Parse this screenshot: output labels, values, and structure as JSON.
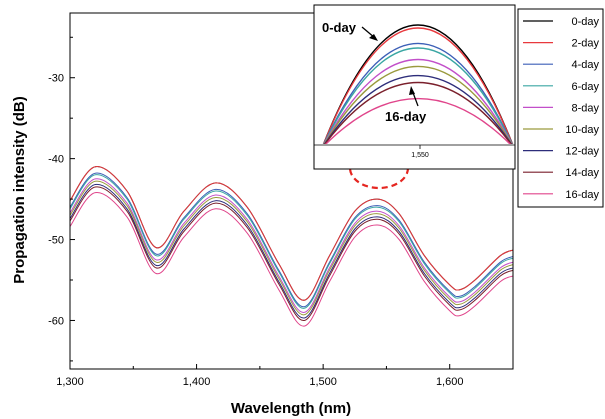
{
  "chart_data": {
    "type": "line",
    "title": "",
    "xlabel": "Wavelength (nm)",
    "ylabel": "Propagation intensity (dB)",
    "xlim": [
      1300,
      1650
    ],
    "ylim": [
      -66,
      -22
    ],
    "x_ticks": [
      1300,
      1400,
      1500,
      1600
    ],
    "x_tick_labels": [
      "1,300",
      "1,400",
      "1,500",
      "1,600"
    ],
    "y_ticks": [
      -60,
      -50,
      -40,
      -30
    ],
    "y_tick_labels": [
      "-60",
      "-50",
      "-40",
      "-30"
    ],
    "grid": false,
    "legend_position": "outside-right",
    "base_curve": {
      "x": [
        1300,
        1320,
        1345,
        1368,
        1390,
        1415,
        1440,
        1465,
        1485,
        1505,
        1525,
        1543,
        1560,
        1580,
        1600,
        1608,
        1620,
        1640,
        1650
      ],
      "y": [
        -45.2,
        -41.0,
        -44.0,
        -51.0,
        -46.5,
        -43.0,
        -46.0,
        -53.0,
        -57.5,
        -52.0,
        -46.5,
        -45.0,
        -46.8,
        -52.0,
        -55.6,
        -56.2,
        -55.0,
        -52.0,
        -51.3
      ]
    },
    "series": [
      {
        "name": "0-day",
        "color": "#000000",
        "offset": 0.0
      },
      {
        "name": "2-day",
        "color": "#e8383d",
        "offset": 0.0
      },
      {
        "name": "4-day",
        "color": "#3c5fb7",
        "offset": -0.8
      },
      {
        "name": "6-day",
        "color": "#3aa6a3",
        "offset": -1.0
      },
      {
        "name": "8-day",
        "color": "#c24fc9",
        "offset": -1.5
      },
      {
        "name": "10-day",
        "color": "#9a9a3d",
        "offset": -1.8
      },
      {
        "name": "12-day",
        "color": "#2d2d7a",
        "offset": -2.2
      },
      {
        "name": "14-day",
        "color": "#7a1f2b",
        "offset": -2.5
      },
      {
        "name": "16-day",
        "color": "#e0458b",
        "offset": -3.2
      }
    ],
    "inset": {
      "x_tick_label": "1,550",
      "annotations": [
        "0-day",
        "16-day"
      ]
    }
  }
}
